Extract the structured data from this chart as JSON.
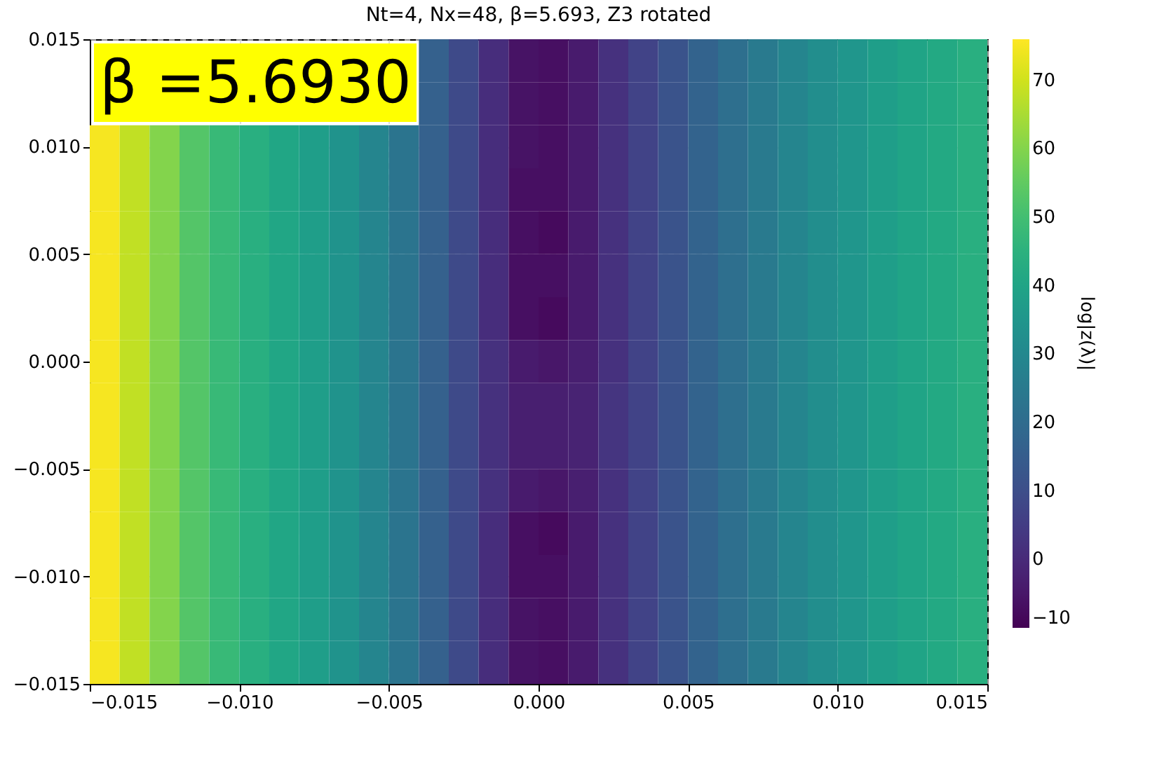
{
  "chart_data": {
    "type": "heatmap",
    "title": "Nt=4, Nx=48, β=5.693, Z3 rotated",
    "clabel": "log|z(λ)|",
    "annotations": [
      "β =5.6930"
    ],
    "xlim": [
      -0.015,
      0.015
    ],
    "ylim": [
      -0.015,
      0.015
    ],
    "xticks": [
      {
        "value": -0.015,
        "label": "−0.015"
      },
      {
        "value": -0.01,
        "label": "−0.010"
      },
      {
        "value": -0.005,
        "label": "−0.005"
      },
      {
        "value": 0,
        "label": "0.000"
      },
      {
        "value": 0.005,
        "label": "0.005"
      },
      {
        "value": 0.01,
        "label": "0.010"
      },
      {
        "value": 0.015,
        "label": "0.015"
      }
    ],
    "yticks": [
      {
        "value": -0.015,
        "label": "−0.015"
      },
      {
        "value": -0.01,
        "label": "−0.010"
      },
      {
        "value": -0.005,
        "label": "−0.005"
      },
      {
        "value": 0,
        "label": "0.000"
      },
      {
        "value": 0.005,
        "label": "0.005"
      },
      {
        "value": 0.01,
        "label": "0.010"
      },
      {
        "value": 0.015,
        "label": "0.015"
      }
    ],
    "clim": [
      -10,
      76
    ],
    "cticks": [
      -10,
      0,
      10,
      20,
      30,
      40,
      50,
      60,
      70
    ],
    "grid": true,
    "cells": [
      [
        null,
        null,
        null,
        null,
        null,
        null,
        null,
        null,
        null,
        null,
        null,
        16,
        9,
        1,
        -6,
        -7,
        -4,
        2,
        7,
        12,
        17,
        21,
        25,
        29,
        32,
        35,
        38,
        40,
        42,
        44
      ],
      [
        null,
        null,
        null,
        null,
        null,
        null,
        null,
        null,
        null,
        null,
        null,
        16,
        9,
        1,
        -6,
        -7,
        -4,
        2,
        7,
        12,
        17,
        21,
        25,
        29,
        32,
        35,
        38,
        40,
        42,
        44
      ],
      [
        75,
        68,
        60,
        53,
        48,
        44,
        41,
        38,
        34,
        29,
        23,
        16,
        9,
        1,
        -6,
        -7,
        -4,
        2,
        7,
        12,
        17,
        21,
        25,
        29,
        32,
        35,
        38,
        40,
        42,
        44
      ],
      [
        75,
        68,
        60,
        53,
        48,
        44,
        41,
        38,
        34,
        29,
        23,
        16,
        9,
        1,
        -7,
        -7,
        -4,
        2,
        7,
        12,
        17,
        21,
        25,
        29,
        32,
        35,
        38,
        40,
        42,
        44
      ],
      [
        75,
        68,
        60,
        53,
        48,
        44,
        41,
        38,
        34,
        29,
        23,
        16,
        9,
        1,
        -7,
        -8,
        -4,
        2,
        7,
        12,
        17,
        21,
        25,
        29,
        32,
        35,
        38,
        40,
        42,
        44
      ],
      [
        75,
        68,
        60,
        53,
        48,
        44,
        41,
        38,
        34,
        29,
        23,
        16,
        9,
        1,
        -7,
        -7,
        -4,
        2,
        7,
        12,
        17,
        21,
        25,
        29,
        32,
        35,
        38,
        40,
        42,
        44
      ],
      [
        75,
        68,
        60,
        53,
        48,
        44,
        41,
        38,
        34,
        29,
        23,
        16,
        9,
        1,
        -7,
        -8,
        -4,
        2,
        7,
        12,
        17,
        21,
        25,
        29,
        32,
        35,
        38,
        40,
        42,
        44
      ],
      [
        75,
        68,
        60,
        53,
        48,
        44,
        41,
        38,
        34,
        29,
        23,
        16,
        9,
        2,
        -4,
        -5,
        -3,
        2,
        7,
        12,
        17,
        21,
        25,
        29,
        32,
        35,
        38,
        40,
        42,
        44
      ],
      [
        75,
        68,
        60,
        53,
        48,
        44,
        41,
        38,
        34,
        29,
        23,
        16,
        9,
        2,
        -3,
        -3,
        -2,
        3,
        7,
        12,
        17,
        21,
        25,
        29,
        32,
        35,
        38,
        40,
        42,
        44
      ],
      [
        75,
        68,
        60,
        53,
        48,
        44,
        41,
        38,
        34,
        29,
        23,
        16,
        9,
        2,
        -3,
        -3,
        -2,
        3,
        7,
        12,
        17,
        21,
        25,
        29,
        32,
        35,
        38,
        40,
        42,
        44
      ],
      [
        75,
        68,
        60,
        53,
        48,
        44,
        41,
        38,
        34,
        29,
        23,
        16,
        9,
        2,
        -4,
        -5,
        -3,
        2,
        7,
        12,
        17,
        21,
        25,
        29,
        32,
        35,
        38,
        40,
        42,
        44
      ],
      [
        75,
        68,
        60,
        53,
        48,
        44,
        41,
        38,
        34,
        29,
        23,
        16,
        9,
        1,
        -7,
        -8,
        -4,
        2,
        7,
        12,
        17,
        21,
        25,
        29,
        32,
        35,
        38,
        40,
        42,
        44
      ],
      [
        75,
        68,
        60,
        53,
        48,
        44,
        41,
        38,
        34,
        29,
        23,
        16,
        9,
        1,
        -7,
        -7,
        -4,
        2,
        7,
        12,
        17,
        21,
        25,
        29,
        32,
        35,
        38,
        40,
        42,
        44
      ],
      [
        75,
        68,
        60,
        53,
        48,
        44,
        41,
        38,
        34,
        29,
        23,
        16,
        9,
        1,
        -6,
        -7,
        -4,
        2,
        7,
        12,
        17,
        21,
        25,
        29,
        32,
        35,
        38,
        40,
        42,
        44
      ],
      [
        75,
        68,
        60,
        53,
        48,
        44,
        41,
        38,
        34,
        29,
        23,
        16,
        9,
        1,
        -6,
        -7,
        -4,
        2,
        7,
        12,
        17,
        21,
        25,
        29,
        32,
        35,
        38,
        40,
        42,
        44
      ]
    ]
  }
}
